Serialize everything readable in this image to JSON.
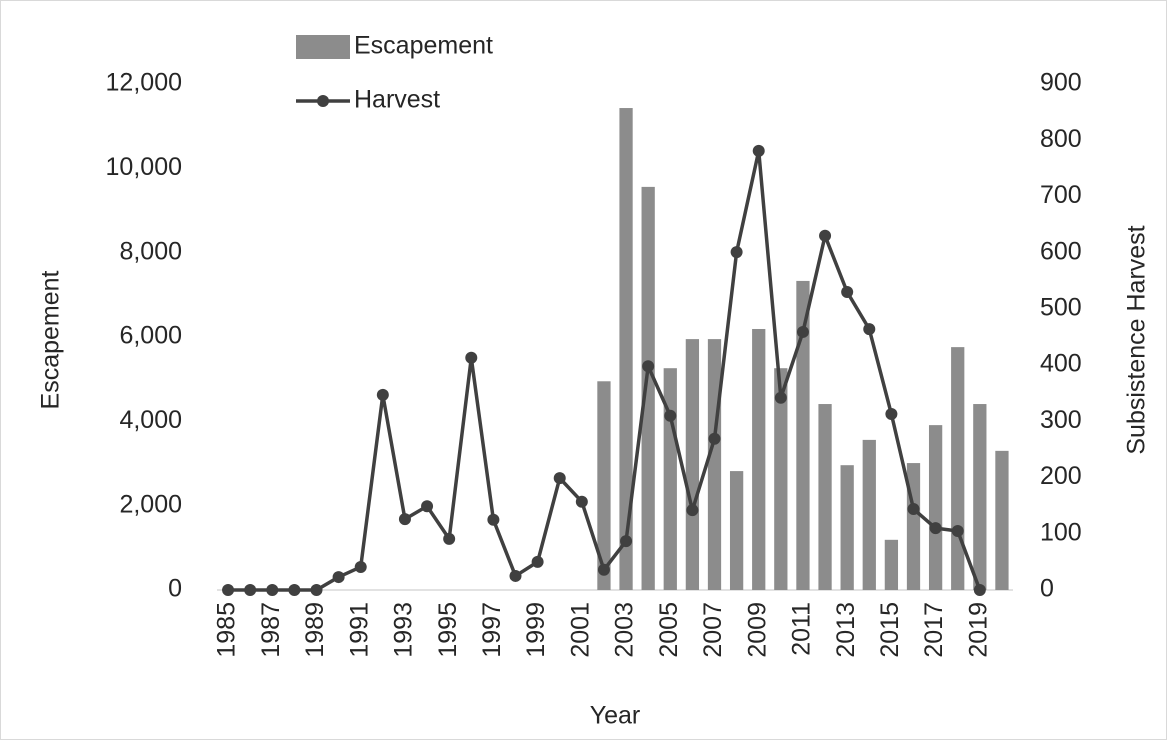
{
  "chart_data": {
    "type": "bar",
    "categories": [
      "1985",
      null,
      "1987",
      null,
      "1989",
      null,
      "1991",
      null,
      "1993",
      null,
      "1995",
      null,
      "1997",
      null,
      "1999",
      null,
      "2001",
      null,
      "2003",
      null,
      "2005",
      null,
      "2007",
      null,
      "2009",
      null,
      "2011",
      null,
      "2013",
      null,
      "2015",
      null,
      "2017",
      null,
      "2019",
      null
    ],
    "x_label": "Year",
    "y_label": "Escapement",
    "y2_label": "Subsistence Harvest",
    "series": [
      {
        "name": "Escapement",
        "type": "bar",
        "color": "#8c8c8c",
        "values": [
          null,
          null,
          null,
          null,
          null,
          null,
          null,
          null,
          null,
          null,
          null,
          null,
          null,
          null,
          null,
          null,
          null,
          4950,
          11430,
          9560,
          5260,
          5950,
          5950,
          2820,
          6190,
          5260,
          7330,
          4410,
          2960,
          3560,
          1190,
          3010,
          3910,
          5760,
          4410,
          3300
        ]
      },
      {
        "name": "Harvest",
        "type": "line",
        "axis": "y2",
        "color": "#404040",
        "values": [
          0,
          0,
          0,
          0,
          0,
          23,
          41,
          347,
          126,
          149,
          91,
          413,
          125,
          25,
          50,
          199,
          157,
          36,
          87,
          398,
          310,
          142,
          269,
          601,
          781,
          342,
          459,
          630,
          530,
          464,
          313,
          144,
          110,
          105,
          0,
          null
        ]
      }
    ],
    "ylim": [
      0,
      12000
    ],
    "yticks": [
      0,
      {
        "value": 2000,
        "label": "2,000"
      },
      {
        "value": 4000,
        "label": "4,000"
      },
      {
        "value": 6000,
        "label": "6,000"
      },
      {
        "value": 8000,
        "label": "8,000"
      },
      {
        "value": 10000,
        "label": "10,000"
      },
      {
        "value": 12000,
        "label": "12,000"
      }
    ],
    "y2lim": [
      0,
      900
    ],
    "y2ticks": [
      0,
      100,
      200,
      300,
      400,
      500,
      600,
      700,
      800,
      900
    ],
    "grid": false,
    "legend": "top"
  }
}
